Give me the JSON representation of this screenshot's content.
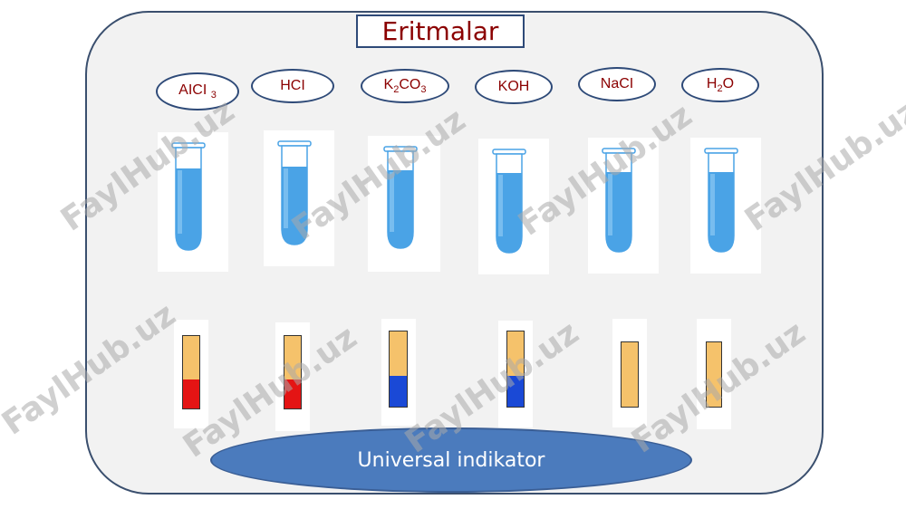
{
  "title": "Eritmalar",
  "indicator_label": "Universal indikator",
  "watermark": "FaylHub.uz",
  "solutions": [
    {
      "name": "AICI",
      "sub": "3",
      "tail": "",
      "strip_low": "#e41414",
      "strip_high": "#f5c26b",
      "indicator": "red"
    },
    {
      "name": "HCI",
      "sub": "",
      "tail": "",
      "strip_low": "#e41414",
      "strip_high": "#f5c26b",
      "indicator": "red"
    },
    {
      "name": "K",
      "sub": "2",
      "tail": "CO",
      "sub2": "3",
      "strip_low": "#1a49d6",
      "strip_high": "#f5c26b",
      "indicator": "blue"
    },
    {
      "name": "KOH",
      "sub": "",
      "tail": "",
      "strip_low": "#1a49d6",
      "strip_high": "#f5c26b",
      "indicator": "blue"
    },
    {
      "name": "NaCI",
      "sub": "",
      "tail": "",
      "strip_low": "#f5c26b",
      "strip_high": "#f5c26b",
      "indicator": "none"
    },
    {
      "name": "H",
      "sub": "2",
      "tail": "O",
      "strip_low": "#f5c26b",
      "strip_high": "#f5c26b",
      "indicator": "none"
    }
  ],
  "colors": {
    "title_text": "#8b0000",
    "liquid": "#4aa3e6",
    "strip_base": "#f5c26b",
    "oval_fill": "#4b7bbd"
  }
}
